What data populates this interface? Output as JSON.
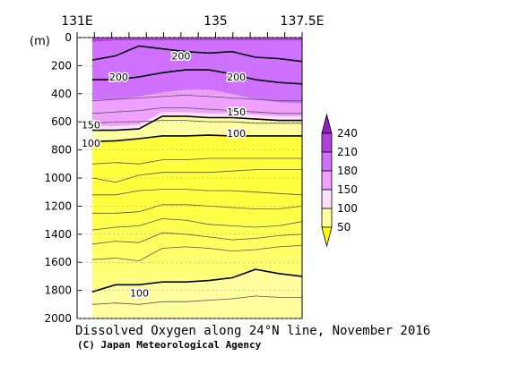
{
  "chart_data": {
    "type": "heatmap",
    "title": "Dissolved Oxygen along 24°N line, November 2016",
    "credit": "(C) Japan Meteorological Agency",
    "x_axis": {
      "range": [
        131,
        137.5
      ],
      "tick_labels": [
        "131E",
        "135",
        "137.5E"
      ],
      "tick_values": [
        131,
        135,
        137.5
      ]
    },
    "y_axis": {
      "unit_label": "(m)",
      "range": [
        0,
        2000
      ],
      "inverted": true,
      "tick_values": [
        0,
        200,
        400,
        600,
        800,
        1000,
        1200,
        1400,
        1600,
        1800,
        2000
      ],
      "tick_labels": [
        "0",
        "200",
        "400",
        "600",
        "800",
        "1000",
        "1200",
        "1400",
        "1600",
        "1800",
        "2000"
      ]
    },
    "colorbar": {
      "labels": [
        "50",
        "100",
        "150",
        "180",
        "210",
        "240"
      ],
      "levels": [
        50,
        100,
        150,
        180,
        210,
        240
      ],
      "colors": [
        "#ffff00",
        "#ffffa0",
        "#ffe0ff",
        "#f0a0ff",
        "#d070ff",
        "#b040e0",
        "#9020c0"
      ]
    },
    "contour_labels": [
      {
        "text": "200",
        "x": 134.0,
        "depth": 130
      },
      {
        "text": "200",
        "x": 132.2,
        "depth": 280
      },
      {
        "text": "200",
        "x": 135.6,
        "depth": 280
      },
      {
        "text": "150",
        "x": 135.6,
        "depth": 530
      },
      {
        "text": "150",
        "x": 131.4,
        "depth": 620
      },
      {
        "text": "100",
        "x": 135.6,
        "depth": 680
      },
      {
        "text": "100",
        "x": 131.4,
        "depth": 750
      },
      {
        "text": "100",
        "x": 132.8,
        "depth": 1820
      }
    ],
    "contours": [
      {
        "level": 200,
        "major": true,
        "depth": [
          300,
          300,
          280,
          250,
          230,
          230,
          260,
          300,
          320,
          330
        ]
      },
      {
        "level": 200,
        "major": true,
        "depth": [
          160,
          130,
          60,
          80,
          100,
          110,
          100,
          140,
          150,
          170
        ]
      },
      {
        "level": 150,
        "major": true,
        "depth": [
          660,
          660,
          650,
          560,
          560,
          570,
          570,
          580,
          590,
          590
        ]
      },
      {
        "level": 100,
        "major": true,
        "depth": [
          740,
          735,
          720,
          700,
          700,
          695,
          700,
          700,
          700,
          700
        ]
      },
      {
        "level": 100,
        "major": true,
        "depth": [
          1810,
          1760,
          1760,
          1740,
          1740,
          1730,
          1710,
          1650,
          1680,
          1700
        ]
      }
    ]
  }
}
